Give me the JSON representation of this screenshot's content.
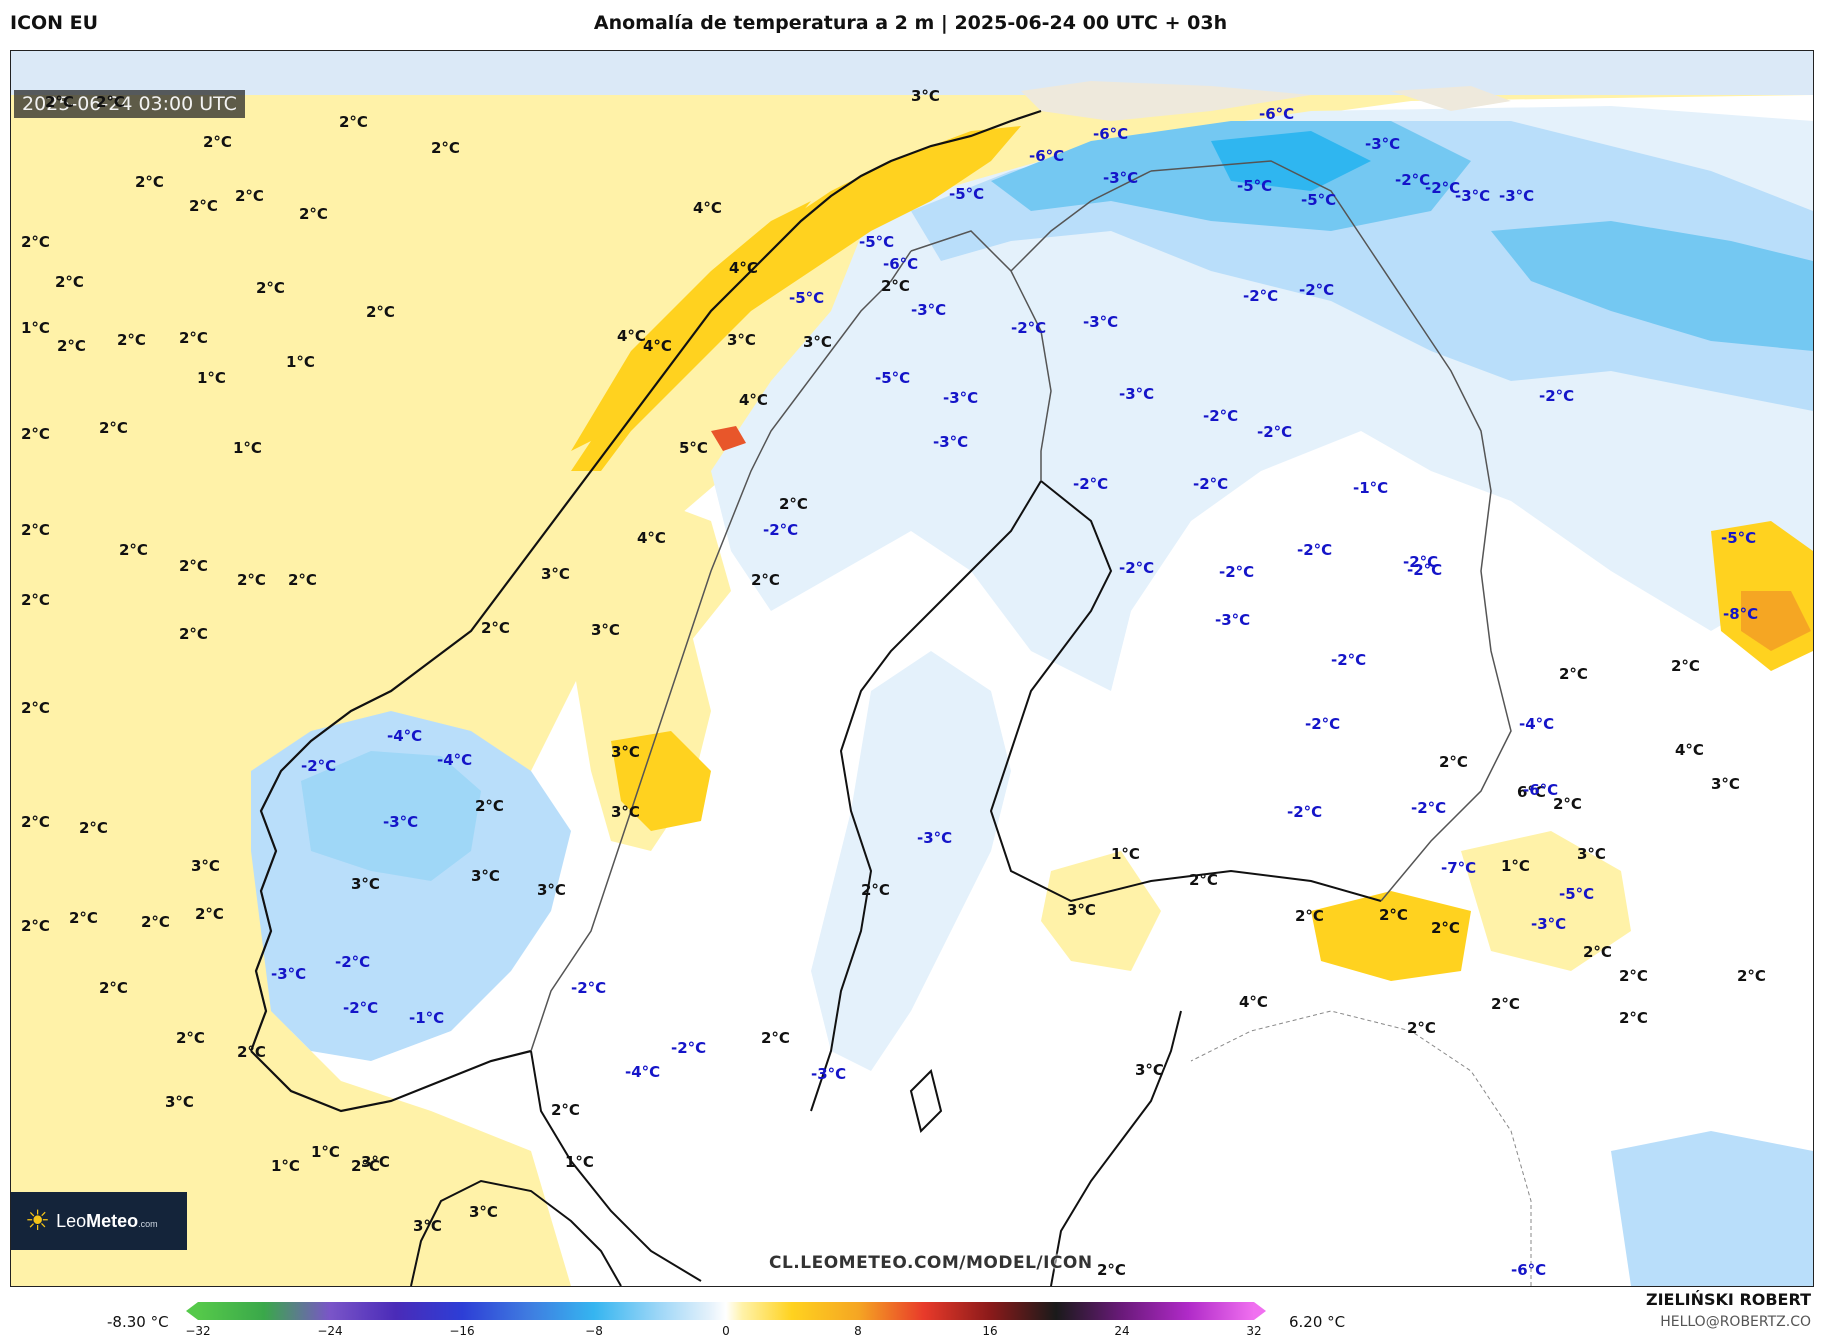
{
  "header": {
    "model": "ICON EU",
    "title": "Anomalía de temperatura a 2 m | 2025-06-24 00 UTC + 03h"
  },
  "map": {
    "timestamp": "2025-06-24 03:00 UTC",
    "source_url": "CL.LEOMETEO.COM/MODEL/ICON",
    "logo": {
      "text_main": "Leo",
      "text_bold": "Meteo",
      "text_small": ".com"
    },
    "colors": {
      "warm_light": "#fff2a8",
      "warm_mid": "#ffd21f",
      "warm_strong": "#f5a623",
      "warm_hot": "#e8562a",
      "neutral": "#ffffff",
      "cold_light": "#e4f1fb",
      "cold_mid": "#b9defa",
      "cold_strong": "#74c8f2",
      "cold_deep": "#2fb6f0",
      "land_no_data": "#eee9dc",
      "coastline": "#111111",
      "border": "#555555"
    },
    "labels": [
      {
        "t": "2°C",
        "c": "pos"
      },
      {
        "t": "2°C",
        "c": "pos"
      },
      {
        "t": "2°C",
        "c": "pos"
      },
      {
        "t": "2°C",
        "c": "pos"
      },
      {
        "t": "2°C",
        "c": "pos"
      },
      {
        "t": "2°C",
        "c": "pos"
      },
      {
        "t": "2°C",
        "c": "pos"
      },
      {
        "t": "2°C",
        "c": "pos"
      },
      {
        "t": "2°C",
        "c": "pos"
      },
      {
        "t": "2°C",
        "c": "pos"
      },
      {
        "t": "2°C",
        "c": "pos"
      },
      {
        "t": "2°C",
        "c": "pos"
      },
      {
        "t": "2°C",
        "c": "pos"
      },
      {
        "t": "1°C",
        "c": "pos"
      },
      {
        "t": "2°C",
        "c": "pos"
      },
      {
        "t": "2°C",
        "c": "pos"
      },
      {
        "t": "2°C",
        "c": "pos"
      },
      {
        "t": "1°C",
        "c": "pos"
      },
      {
        "t": "1°C",
        "c": "pos"
      },
      {
        "t": "2°C",
        "c": "pos"
      },
      {
        "t": "1°C",
        "c": "pos"
      },
      {
        "t": "2°C",
        "c": "pos"
      },
      {
        "t": "2°C",
        "c": "pos"
      },
      {
        "t": "2°C",
        "c": "pos"
      },
      {
        "t": "2°C",
        "c": "pos"
      },
      {
        "t": "2°C",
        "c": "pos"
      },
      {
        "t": "2°C",
        "c": "pos"
      },
      {
        "t": "2°C",
        "c": "pos"
      },
      {
        "t": "2°C",
        "c": "pos"
      },
      {
        "t": "2°C",
        "c": "pos"
      },
      {
        "t": "2°C",
        "c": "pos"
      },
      {
        "t": "2°C",
        "c": "pos"
      },
      {
        "t": "2°C",
        "c": "pos"
      },
      {
        "t": "2°C",
        "c": "pos"
      },
      {
        "t": "2°C",
        "c": "pos"
      },
      {
        "t": "2°C",
        "c": "pos"
      },
      {
        "t": "2°C",
        "c": "pos"
      },
      {
        "t": "2°C",
        "c": "pos"
      },
      {
        "t": "2°C",
        "c": "pos"
      },
      {
        "t": "3°C",
        "c": "pos"
      },
      {
        "t": "2°C",
        "c": "pos"
      },
      {
        "t": "4°C",
        "c": "pos"
      },
      {
        "t": "4°C",
        "c": "pos"
      },
      {
        "t": "4°C",
        "c": "pos"
      },
      {
        "t": "4°C",
        "c": "pos"
      },
      {
        "t": "3°C",
        "c": "pos"
      },
      {
        "t": "3°C",
        "c": "pos"
      },
      {
        "t": "4°C",
        "c": "pos"
      },
      {
        "t": "5°C",
        "c": "pos"
      },
      {
        "t": "2°C",
        "c": "pos"
      },
      {
        "t": "4°C",
        "c": "pos"
      },
      {
        "t": "3°C",
        "c": "pos"
      },
      {
        "t": "2°C",
        "c": "pos"
      },
      {
        "t": "2°C",
        "c": "pos"
      },
      {
        "t": "3°C",
        "c": "pos"
      },
      {
        "t": "3°C",
        "c": "pos"
      },
      {
        "t": "3°C",
        "c": "pos"
      },
      {
        "t": "2°C",
        "c": "pos"
      },
      {
        "t": "3°C",
        "c": "pos"
      },
      {
        "t": "3°C",
        "c": "pos"
      },
      {
        "t": "3°C",
        "c": "pos"
      },
      {
        "t": "3°C",
        "c": "pos"
      },
      {
        "t": "2°C",
        "c": "pos"
      },
      {
        "t": "2°C",
        "c": "pos"
      },
      {
        "t": "2°C",
        "c": "pos"
      },
      {
        "t": "1°C",
        "c": "pos"
      },
      {
        "t": "3°C",
        "c": "pos"
      },
      {
        "t": "3°C",
        "c": "pos"
      },
      {
        "t": "3°C",
        "c": "pos"
      },
      {
        "t": "3°C",
        "c": "pos"
      },
      {
        "t": "2°C",
        "c": "pos"
      },
      {
        "t": "3°C",
        "c": "pos"
      },
      {
        "t": "1°C",
        "c": "pos"
      },
      {
        "t": "1°C",
        "c": "pos"
      },
      {
        "t": "2°C",
        "c": "pos"
      },
      {
        "t": "3°C",
        "c": "pos"
      },
      {
        "t": "1°C",
        "c": "pos"
      },
      {
        "t": "2°C",
        "c": "pos"
      },
      {
        "t": "2°C",
        "c": "pos"
      },
      {
        "t": "2°C",
        "c": "pos"
      },
      {
        "t": "2°C",
        "c": "pos"
      },
      {
        "t": "4°C",
        "c": "pos"
      },
      {
        "t": "2°C",
        "c": "pos"
      },
      {
        "t": "2°C",
        "c": "pos"
      },
      {
        "t": "2°C",
        "c": "pos"
      },
      {
        "t": "2°C",
        "c": "pos"
      },
      {
        "t": "2°C",
        "c": "pos"
      },
      {
        "t": "4°C",
        "c": "pos"
      },
      {
        "t": "3°C",
        "c": "pos"
      },
      {
        "t": "2°C",
        "c": "pos"
      },
      {
        "t": "1°C",
        "c": "pos"
      },
      {
        "t": "2°C",
        "c": "pos"
      },
      {
        "t": "2°C",
        "c": "pos"
      },
      {
        "t": "3°C",
        "c": "pos"
      },
      {
        "t": "6°C",
        "c": "pos"
      },
      {
        "t": "2°C",
        "c": "pos"
      },
      {
        "t": "2°C",
        "c": "pos"
      },
      {
        "t": "-5°C",
        "c": "neg"
      },
      {
        "t": "-8°C",
        "c": "neg"
      },
      {
        "t": "-6°C",
        "c": "neg"
      },
      {
        "t": "-6°C",
        "c": "neg"
      },
      {
        "t": "-6°C",
        "c": "neg"
      },
      {
        "t": "-6°C",
        "c": "neg"
      },
      {
        "t": "-6°C",
        "c": "neg"
      },
      {
        "t": "-5°C",
        "c": "neg"
      },
      {
        "t": "-5°C",
        "c": "neg"
      },
      {
        "t": "-3°C",
        "c": "neg"
      },
      {
        "t": "-3°C",
        "c": "neg"
      },
      {
        "t": "-5°C",
        "c": "neg"
      },
      {
        "t": "-5°C",
        "c": "neg"
      },
      {
        "t": "-6°C",
        "c": "neg"
      },
      {
        "t": "-5°C",
        "c": "neg"
      },
      {
        "t": "-2°C",
        "c": "neg"
      },
      {
        "t": "-2°C",
        "c": "neg"
      },
      {
        "t": "-3°C",
        "c": "neg"
      },
      {
        "t": "-3°C",
        "c": "neg"
      },
      {
        "t": "-3°C",
        "c": "neg"
      },
      {
        "t": "-2°C",
        "c": "neg"
      },
      {
        "t": "-3°C",
        "c": "neg"
      },
      {
        "t": "-5°C",
        "c": "neg"
      },
      {
        "t": "-3°C",
        "c": "neg"
      },
      {
        "t": "-3°C",
        "c": "neg"
      },
      {
        "t": "-2°C",
        "c": "neg"
      },
      {
        "t": "-2°C",
        "c": "neg"
      },
      {
        "t": "-2°C",
        "c": "neg"
      },
      {
        "t": "-2°C",
        "c": "neg"
      },
      {
        "t": "-3°C",
        "c": "neg"
      },
      {
        "t": "-2°C",
        "c": "neg"
      },
      {
        "t": "-2°C",
        "c": "neg"
      },
      {
        "t": "-2°C",
        "c": "neg"
      },
      {
        "t": "-1°C",
        "c": "neg"
      },
      {
        "t": "-2°C",
        "c": "neg"
      },
      {
        "t": "-2°C",
        "c": "neg"
      },
      {
        "t": "-2°C",
        "c": "neg"
      },
      {
        "t": "-2°C",
        "c": "neg"
      },
      {
        "t": "-2°C",
        "c": "neg"
      },
      {
        "t": "-2°C",
        "c": "neg"
      },
      {
        "t": "-2°C",
        "c": "neg"
      },
      {
        "t": "-3°C",
        "c": "neg"
      },
      {
        "t": "-2°C",
        "c": "neg"
      },
      {
        "t": "-2°C",
        "c": "neg"
      },
      {
        "t": "-2°C",
        "c": "neg"
      },
      {
        "t": "-4°C",
        "c": "neg"
      },
      {
        "t": "-7°C",
        "c": "neg"
      },
      {
        "t": "-3°C",
        "c": "neg"
      },
      {
        "t": "-5°C",
        "c": "neg"
      },
      {
        "t": "-2°C",
        "c": "neg"
      },
      {
        "t": "-4°C",
        "c": "neg"
      },
      {
        "t": "-4°C",
        "c": "neg"
      },
      {
        "t": "-3°C",
        "c": "neg"
      },
      {
        "t": "-3°C",
        "c": "neg"
      },
      {
        "t": "-3°C",
        "c": "neg"
      },
      {
        "t": "-2°C",
        "c": "neg"
      },
      {
        "t": "-2°C",
        "c": "neg"
      },
      {
        "t": "-1°C",
        "c": "neg"
      },
      {
        "t": "-2°C",
        "c": "neg"
      },
      {
        "t": "-2°C",
        "c": "neg"
      },
      {
        "t": "-4°C",
        "c": "neg"
      },
      {
        "t": "-3°C",
        "c": "neg"
      }
    ]
  },
  "legend": {
    "min_label": "-8.30 °C",
    "max_label": "6.20 °C",
    "scale_min": -32,
    "scale_max": 32,
    "ticks": [
      "−32",
      "−24",
      "−16",
      "−8",
      "0",
      "8",
      "16",
      "24",
      "32"
    ],
    "stops": [
      {
        "v": -32,
        "c": "#55c94a"
      },
      {
        "v": -28,
        "c": "#3aa84a"
      },
      {
        "v": -24,
        "c": "#7a55c8"
      },
      {
        "v": -20,
        "c": "#4a2bb8"
      },
      {
        "v": -16,
        "c": "#2d3ed6"
      },
      {
        "v": -12,
        "c": "#3f7be0"
      },
      {
        "v": -8,
        "c": "#35b5f0"
      },
      {
        "v": -4,
        "c": "#9fd7f7"
      },
      {
        "v": -1,
        "c": "#e4f1fb"
      },
      {
        "v": 0,
        "c": "#ffffff"
      },
      {
        "v": 1,
        "c": "#fff2a8"
      },
      {
        "v": 4,
        "c": "#ffd21f"
      },
      {
        "v": 8,
        "c": "#f5a623"
      },
      {
        "v": 12,
        "c": "#e83a2a"
      },
      {
        "v": 16,
        "c": "#8b1a1a"
      },
      {
        "v": 20,
        "c": "#1a1a1a"
      },
      {
        "v": 24,
        "c": "#6a1a7a"
      },
      {
        "v": 28,
        "c": "#b02ac8"
      },
      {
        "v": 32,
        "c": "#f070f0"
      }
    ]
  },
  "credits": {
    "author": "ZIELIŃSKI ROBERT",
    "email": "HELLO@ROBERTZ.CO"
  }
}
